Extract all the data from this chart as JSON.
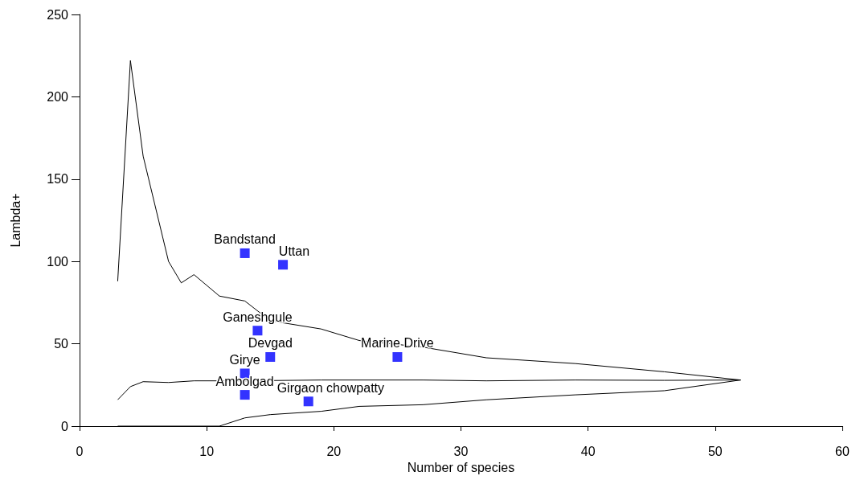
{
  "chart_data": {
    "type": "scatter",
    "xlabel": "Number of species",
    "ylabel": "Lambda+",
    "xlim": [
      0,
      60
    ],
    "xticks": [
      0,
      10,
      20,
      30,
      40,
      50,
      60
    ],
    "ylim": [
      0,
      250
    ],
    "yticks": [
      0,
      50,
      100,
      150,
      200,
      250
    ],
    "grid": false,
    "series": [
      {
        "type": "line",
        "marker": "none",
        "color": "#000000",
        "x": [
          3,
          4,
          5,
          7,
          8,
          9,
          11,
          13,
          15,
          19,
          22,
          27,
          32,
          39,
          46,
          52
        ],
        "values": [
          88,
          222,
          164,
          100,
          87,
          92,
          79,
          76,
          64,
          59,
          52,
          48,
          41.5,
          38,
          33,
          28
        ]
      },
      {
        "type": "line",
        "marker": "none",
        "color": "#000000",
        "x": [
          3,
          4,
          5,
          7,
          9,
          13,
          19,
          27,
          32,
          39,
          46,
          52
        ],
        "values": [
          16,
          24,
          27,
          26.5,
          27.5,
          27.5,
          28,
          28,
          27.5,
          28,
          27.8,
          28
        ]
      },
      {
        "type": "line",
        "marker": "none",
        "color": "#000000",
        "x": [
          3,
          11,
          13,
          15,
          19,
          22,
          27,
          32,
          39,
          46,
          52
        ],
        "values": [
          0,
          0,
          5,
          7,
          9,
          12,
          13,
          16,
          19,
          21.5,
          28
        ]
      },
      {
        "type": "scatter",
        "marker": "square",
        "color": "#0000ff",
        "x": [
          13,
          16,
          14,
          15,
          25,
          13,
          13,
          18
        ],
        "values": [
          105,
          98,
          58,
          42,
          42,
          32,
          19,
          15
        ]
      }
    ],
    "annotations": [
      {
        "text": "Bandstand",
        "x": 13,
        "y": 105
      },
      {
        "text": "Uttan",
        "x": 16,
        "y": 98
      },
      {
        "text": "Ganeshgule",
        "x": 14,
        "y": 58
      },
      {
        "text": "Devgad",
        "x": 15,
        "y": 42
      },
      {
        "text": "Marine Drive",
        "x": 25,
        "y": 42
      },
      {
        "text": "Girye",
        "x": 13,
        "y": 32
      },
      {
        "text": "Ambolgad",
        "x": 13,
        "y": 19
      },
      {
        "text": "Girgaon chowpatty",
        "x": 18,
        "y": 15
      }
    ]
  }
}
